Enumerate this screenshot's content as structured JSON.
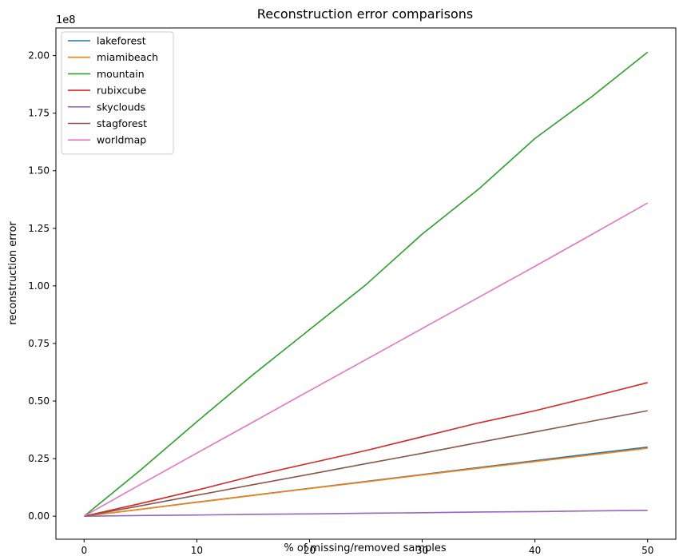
{
  "chart_data": {
    "type": "line",
    "title": "Reconstruction error comparisons",
    "xlabel": "% of missing/removed samples",
    "ylabel": "reconstruction error",
    "y_offset_label": "1e8",
    "xlim": [
      -2.5,
      52.5
    ],
    "ylim": [
      -0.1,
      2.12
    ],
    "x_ticks": [
      0,
      10,
      20,
      30,
      40,
      50
    ],
    "x_tick_labels": [
      "0",
      "10",
      "20",
      "30",
      "40",
      "50"
    ],
    "y_ticks": [
      0,
      0.25,
      0.5,
      0.75,
      1.0,
      1.25,
      1.5,
      1.75,
      2.0
    ],
    "y_tick_labels": [
      "0.00",
      "0.25",
      "0.50",
      "0.75",
      "1.00",
      "1.25",
      "1.50",
      "1.75",
      "2.00"
    ],
    "grid": false,
    "legend_position": "top-left",
    "x": [
      0,
      5,
      10,
      15,
      20,
      25,
      30,
      35,
      40,
      45,
      50
    ],
    "series": [
      {
        "name": "lakeforest",
        "color": "#1f77b4",
        "values": [
          0,
          0.03,
          0.061,
          0.091,
          0.121,
          0.151,
          0.181,
          0.211,
          0.241,
          0.271,
          0.3
        ]
      },
      {
        "name": "miamibeach",
        "color": "#ff7f0e",
        "values": [
          0,
          0.03,
          0.06,
          0.09,
          0.12,
          0.149,
          0.179,
          0.208,
          0.237,
          0.266,
          0.295
        ]
      },
      {
        "name": "mountain",
        "color": "#2ca02c",
        "values": [
          0,
          0.2,
          0.41,
          0.615,
          0.81,
          1.005,
          1.225,
          1.42,
          1.64,
          1.82,
          2.015
        ]
      },
      {
        "name": "rubixcube",
        "color": "#d62728",
        "values": [
          0,
          0.055,
          0.113,
          0.175,
          0.23,
          0.285,
          0.345,
          0.405,
          0.458,
          0.518,
          0.58
        ]
      },
      {
        "name": "skyclouds",
        "color": "#9467bd",
        "values": [
          0,
          0.003,
          0.005,
          0.008,
          0.01,
          0.013,
          0.015,
          0.018,
          0.02,
          0.023,
          0.025
        ]
      },
      {
        "name": "stagforest",
        "color": "#8c564b",
        "values": [
          0,
          0.045,
          0.091,
          0.137,
          0.182,
          0.228,
          0.273,
          0.32,
          0.366,
          0.412,
          0.458
        ]
      },
      {
        "name": "worldmap",
        "color": "#e377c2",
        "values": [
          0,
          0.138,
          0.274,
          0.409,
          0.545,
          0.68,
          0.815,
          0.95,
          1.085,
          1.222,
          1.36
        ]
      }
    ]
  }
}
